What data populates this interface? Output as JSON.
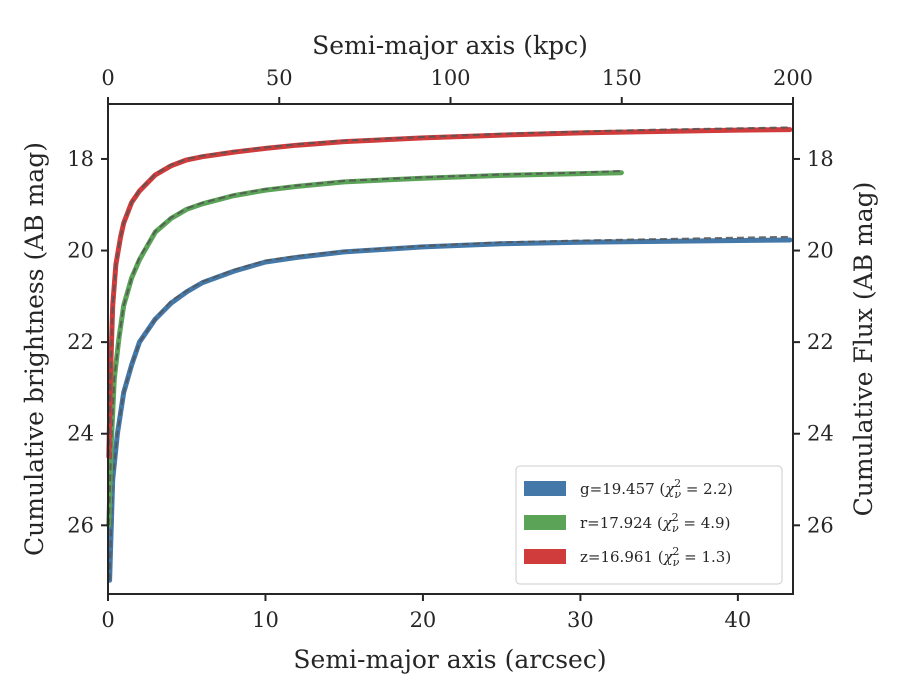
{
  "chart_data": {
    "type": "line",
    "xlabel": "Semi-major axis (arcsec)",
    "ylabel": "Cumulative brightness (AB mag)",
    "top_xlabel": "Semi-major axis (kpc)",
    "right_ylabel": "Cumulative Flux (AB mag)",
    "xlim": [
      0,
      43.5
    ],
    "top_xlim": [
      0,
      200
    ],
    "ylim": [
      27.5,
      16.8
    ],
    "y_inverted": true,
    "x_ticks": [
      "0",
      "10",
      "20",
      "30",
      "40"
    ],
    "x_tick_values": [
      0,
      10,
      20,
      30,
      40
    ],
    "top_x_ticks": [
      "0",
      "50",
      "100",
      "150",
      "200"
    ],
    "top_x_tick_values": [
      0,
      50,
      100,
      150,
      200
    ],
    "y_ticks": [
      "18",
      "20",
      "22",
      "24",
      "26"
    ],
    "y_tick_values": [
      18,
      20,
      22,
      24,
      26
    ],
    "grid": false,
    "legend_position": "bottom-right",
    "series": [
      {
        "name": "g=19.457 ($\\chi^2_\\nu = 2.2$)",
        "color": "#4378a8",
        "x": [
          0.1,
          0.3,
          0.6,
          1.0,
          1.5,
          2.0,
          3.0,
          4.0,
          5.0,
          6.0,
          8.0,
          10.0,
          12.0,
          15.0,
          20.0,
          25.0,
          30.0,
          35.0,
          40.0,
          43.3
        ],
        "y": [
          27.2,
          25.0,
          24.0,
          23.1,
          22.5,
          22.0,
          21.5,
          21.15,
          20.9,
          20.7,
          20.45,
          20.25,
          20.15,
          20.03,
          19.92,
          19.85,
          19.82,
          19.8,
          19.78,
          19.77
        ],
        "model_y": [
          27.2,
          25.0,
          24.0,
          23.1,
          22.5,
          22.0,
          21.5,
          21.1,
          20.88,
          20.68,
          20.42,
          20.22,
          20.12,
          20.01,
          19.9,
          19.82,
          19.78,
          19.75,
          19.72,
          19.7
        ]
      },
      {
        "name": "r=17.924 ($\\chi^2_\\nu = 4.9$)",
        "color": "#5aa357",
        "x": [
          0.05,
          0.2,
          0.4,
          0.7,
          1.0,
          1.5,
          2.0,
          3.0,
          4.0,
          5.0,
          6.0,
          8.0,
          10.0,
          12.0,
          15.0,
          20.0,
          25.0,
          30.0,
          32.6
        ],
        "y": [
          26.0,
          24.3,
          22.8,
          21.9,
          21.2,
          20.6,
          20.2,
          19.6,
          19.3,
          19.1,
          18.98,
          18.8,
          18.68,
          18.6,
          18.5,
          18.42,
          18.36,
          18.32,
          18.3
        ],
        "model_y": [
          26.0,
          24.3,
          22.8,
          21.9,
          21.2,
          20.6,
          20.15,
          19.58,
          19.28,
          19.08,
          18.96,
          18.78,
          18.66,
          18.58,
          18.48,
          18.4,
          18.34,
          18.3,
          18.26
        ]
      },
      {
        "name": "z=16.961 ($\\chi^2_\\nu = 1.3$)",
        "color": "#d03b3b",
        "x": [
          0.05,
          0.15,
          0.3,
          0.5,
          0.8,
          1.0,
          1.5,
          2.0,
          3.0,
          4.0,
          5.0,
          6.0,
          8.0,
          10.0,
          12.0,
          15.0,
          20.0,
          25.0,
          30.0,
          35.0,
          40.0,
          43.3
        ],
        "y": [
          24.5,
          22.8,
          21.2,
          20.3,
          19.7,
          19.4,
          18.95,
          18.7,
          18.35,
          18.15,
          18.02,
          17.95,
          17.85,
          17.77,
          17.7,
          17.62,
          17.54,
          17.48,
          17.43,
          17.4,
          17.37,
          17.36
        ],
        "model_y": [
          24.5,
          22.8,
          21.2,
          20.3,
          19.7,
          19.4,
          18.95,
          18.68,
          18.33,
          18.13,
          18.0,
          17.93,
          17.83,
          17.75,
          17.68,
          17.6,
          17.52,
          17.45,
          17.4,
          17.36,
          17.33,
          17.31
        ]
      }
    ]
  },
  "legend": {
    "entries": [
      {
        "prefix": "g=19.457 (",
        "chi": "χ",
        "sub": "ν",
        "sup": "2",
        "suffix": " = 2.2)",
        "color": "#4378a8"
      },
      {
        "prefix": "r=17.924 (",
        "chi": "χ",
        "sub": "ν",
        "sup": "2",
        "suffix": " = 4.9)",
        "color": "#5aa357"
      },
      {
        "prefix": "z=16.961 (",
        "chi": "χ",
        "sub": "ν",
        "sup": "2",
        "suffix": " = 1.3)",
        "color": "#d03b3b"
      }
    ]
  }
}
